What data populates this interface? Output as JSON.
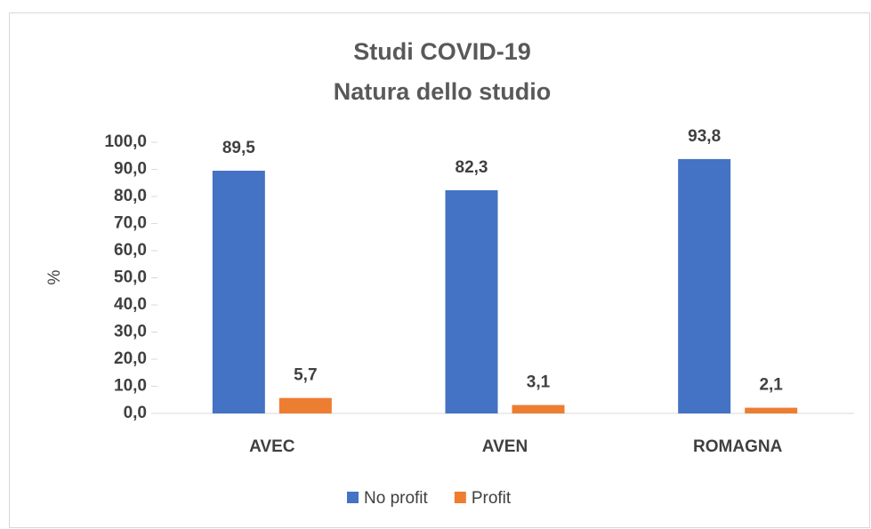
{
  "chart_data": {
    "type": "bar",
    "title": "Studi COVID-19",
    "subtitle": "Natura dello studio",
    "y_label": "%",
    "categories": [
      "AVEC",
      "AVEN",
      "ROMAGNA"
    ],
    "series": [
      {
        "name": "No profit",
        "color": "#4472c4",
        "values": [
          89.5,
          82.3,
          93.8
        ],
        "value_labels": [
          "89,5",
          "82,3",
          "93,8"
        ]
      },
      {
        "name": "Profit",
        "color": "#ed7d31",
        "values": [
          5.7,
          3.1,
          2.1
        ],
        "value_labels": [
          "5,7",
          "3,1",
          "2,1"
        ]
      }
    ],
    "ylim": [
      0,
      100
    ],
    "yticks": [
      {
        "value": 0,
        "label": "0,0"
      },
      {
        "value": 10,
        "label": "10,0"
      },
      {
        "value": 20,
        "label": "20,0"
      },
      {
        "value": 30,
        "label": "30,0"
      },
      {
        "value": 40,
        "label": "40,0"
      },
      {
        "value": 50,
        "label": "50,0"
      },
      {
        "value": 60,
        "label": "60,0"
      },
      {
        "value": 70,
        "label": "70,0"
      },
      {
        "value": 80,
        "label": "80,0"
      },
      {
        "value": 90,
        "label": "90,0"
      },
      {
        "value": 100,
        "label": "100,0"
      }
    ],
    "grid": false,
    "legend": "bottom"
  }
}
